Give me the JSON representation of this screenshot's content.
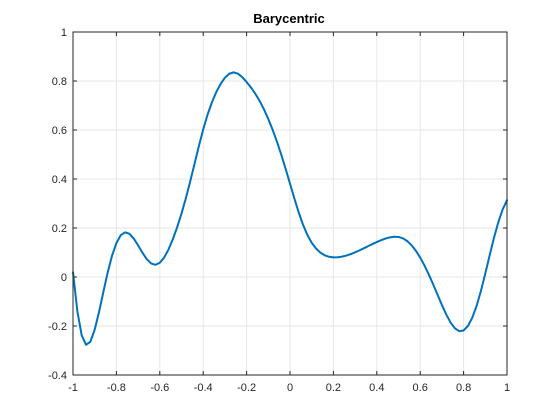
{
  "chart_data": {
    "type": "line",
    "title": "Barycentric",
    "xlabel": "",
    "ylabel": "",
    "xlim": [
      -1,
      1
    ],
    "ylim": [
      -0.4,
      1
    ],
    "x_ticks": [
      -1,
      -0.8,
      -0.6,
      -0.4,
      -0.2,
      0,
      0.2,
      0.4,
      0.6,
      0.8,
      1
    ],
    "x_tick_labels": [
      "-1",
      "-0.8",
      "-0.6",
      "-0.4",
      "-0.2",
      "0",
      "0.2",
      "0.4",
      "0.6",
      "0.8",
      "1"
    ],
    "y_ticks": [
      -0.4,
      -0.2,
      0,
      0.2,
      0.4,
      0.6,
      0.8,
      1
    ],
    "y_tick_labels": [
      "-0.4",
      "-0.2",
      "0",
      "0.2",
      "0.4",
      "0.6",
      "0.8",
      "1"
    ],
    "grid": true,
    "colors": {
      "line": "#0072BD",
      "grid": "#e6e6e6",
      "axis": "#262626"
    },
    "series": [
      {
        "x": [
          -1,
          -0.98,
          -0.96,
          -0.94,
          -0.92,
          -0.9,
          -0.88,
          -0.86,
          -0.84,
          -0.82,
          -0.8,
          -0.78,
          -0.76,
          -0.74,
          -0.72,
          -0.7,
          -0.68,
          -0.66,
          -0.64,
          -0.62,
          -0.6,
          -0.58,
          -0.56,
          -0.54,
          -0.52,
          -0.5,
          -0.48,
          -0.46,
          -0.44,
          -0.42,
          -0.4,
          -0.38,
          -0.36,
          -0.34,
          -0.32,
          -0.3,
          -0.28,
          -0.26,
          -0.24,
          -0.22,
          -0.2,
          -0.18,
          -0.16,
          -0.14,
          -0.12,
          -0.1,
          -0.08,
          -0.06,
          -0.04,
          -0.02,
          0,
          0.02,
          0.04,
          0.06,
          0.08,
          0.1,
          0.12,
          0.14,
          0.16,
          0.18,
          0.2,
          0.22,
          0.24,
          0.26,
          0.28,
          0.3,
          0.32,
          0.34,
          0.36,
          0.38,
          0.4,
          0.42,
          0.44,
          0.46,
          0.48,
          0.5,
          0.52,
          0.54,
          0.56,
          0.58,
          0.6,
          0.62,
          0.64,
          0.66,
          0.68,
          0.7,
          0.72,
          0.74,
          0.76,
          0.78,
          0.8,
          0.82,
          0.84,
          0.86,
          0.88,
          0.9,
          0.92,
          0.94,
          0.96,
          0.98,
          1
        ],
        "values": [
          0.0196,
          -0.1393,
          -0.2381,
          -0.2766,
          -0.2643,
          -0.2148,
          -0.1425,
          -0.0607,
          0.0191,
          0.0873,
          0.1387,
          0.1705,
          0.1823,
          0.1764,
          0.1568,
          0.129,
          0.0991,
          0.0728,
          0.0553,
          0.0499,
          0.058,
          0.0793,
          0.1121,
          0.1541,
          0.2032,
          0.2589,
          0.3212,
          0.3896,
          0.4619,
          0.5343,
          0.6023,
          0.6623,
          0.7128,
          0.7543,
          0.7878,
          0.8133,
          0.8296,
          0.8352,
          0.8299,
          0.8157,
          0.796,
          0.7735,
          0.7481,
          0.7187,
          0.6844,
          0.6451,
          0.6009,
          0.5521,
          0.4987,
          0.4412,
          0.3811,
          0.3208,
          0.2637,
          0.2133,
          0.1718,
          0.1398,
          0.1162,
          0.0996,
          0.0887,
          0.0825,
          0.08,
          0.0804,
          0.0831,
          0.0876,
          0.0936,
          0.1007,
          0.1087,
          0.1172,
          0.1259,
          0.1345,
          0.1427,
          0.1503,
          0.1568,
          0.1617,
          0.1643,
          0.1634,
          0.1579,
          0.1468,
          0.1299,
          0.1073,
          0.0793,
          0.0464,
          0.0094,
          -0.0306,
          -0.0724,
          -0.114,
          -0.1529,
          -0.1859,
          -0.2097,
          -0.2212,
          -0.2183,
          -0.1999,
          -0.1661,
          -0.1178,
          -0.056,
          0.0145,
          0.0884,
          0.1599,
          0.2236,
          0.2757,
          0.3134
        ]
      }
    ]
  }
}
